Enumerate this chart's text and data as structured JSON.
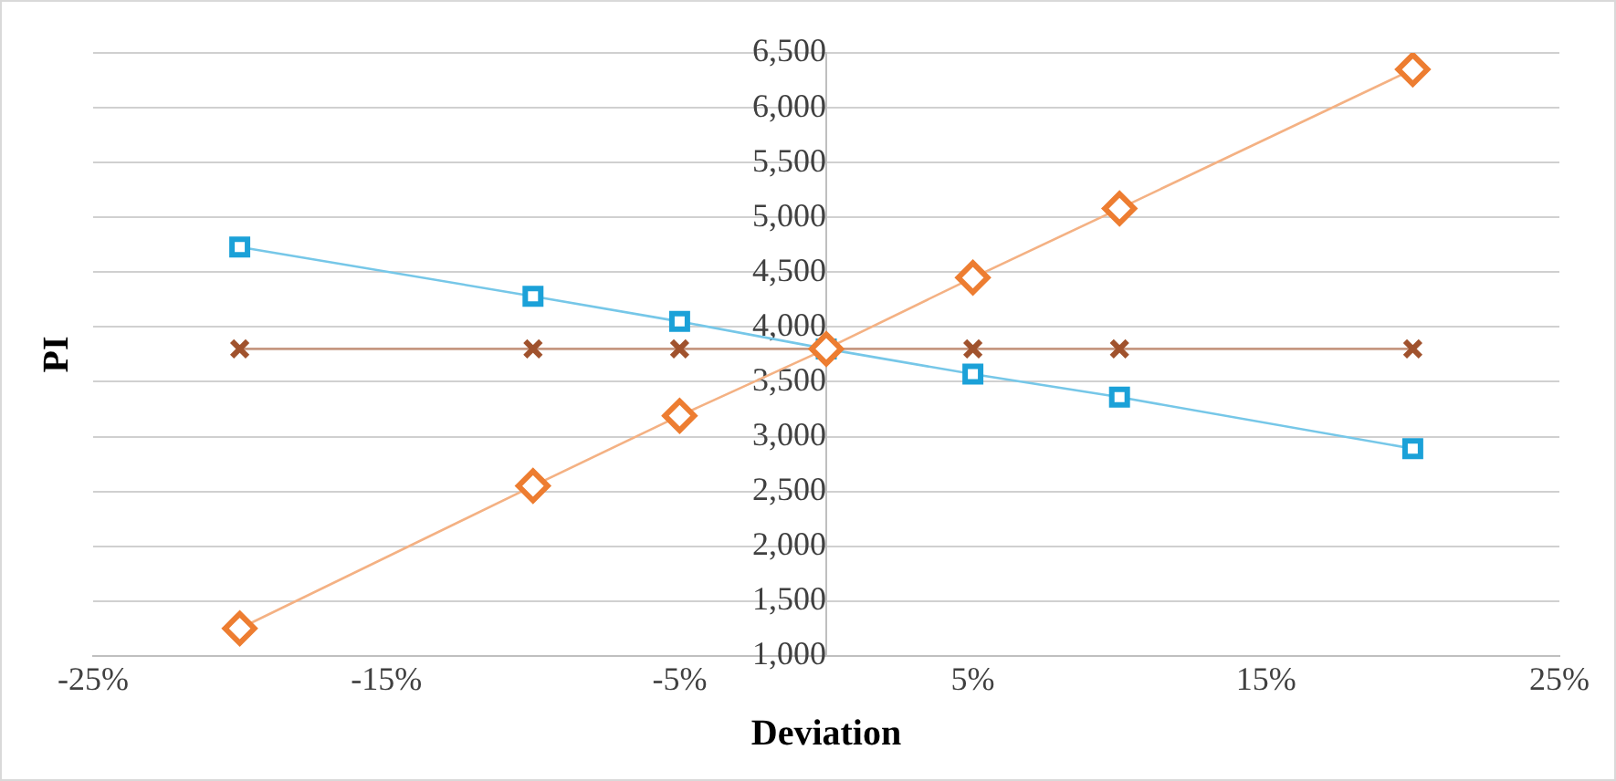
{
  "chart_data": {
    "type": "line",
    "xlabel": "Deviation",
    "ylabel": "PI",
    "xlim": [
      -25,
      25
    ],
    "xticks": [
      {
        "value": -25,
        "label": "-25%"
      },
      {
        "value": -15,
        "label": "-15%"
      },
      {
        "value": -5,
        "label": "-5%"
      },
      {
        "value": 5,
        "label": "5%"
      },
      {
        "value": 15,
        "label": "15%"
      },
      {
        "value": 25,
        "label": "25%"
      }
    ],
    "ylim": [
      1000,
      6500
    ],
    "yticks": [
      {
        "value": 1000,
        "label": "1,000"
      },
      {
        "value": 1500,
        "label": "1,500"
      },
      {
        "value": 2000,
        "label": "2,000"
      },
      {
        "value": 2500,
        "label": "2,500"
      },
      {
        "value": 3000,
        "label": "3,000"
      },
      {
        "value": 3500,
        "label": "3,500"
      },
      {
        "value": 4000,
        "label": "4,000"
      },
      {
        "value": 4500,
        "label": "4,500"
      },
      {
        "value": 5000,
        "label": "5,000"
      },
      {
        "value": 5500,
        "label": "5,500"
      },
      {
        "value": 6000,
        "label": "6,000"
      },
      {
        "value": 6500,
        "label": "6,500"
      }
    ],
    "grid": "y",
    "legend": false,
    "x": [
      -20,
      -10,
      -5,
      0,
      5,
      10,
      20
    ],
    "series": [
      {
        "color": "#ed7d31",
        "marker": "diamond",
        "values": [
          1250,
          2550,
          3190,
          3800,
          4450,
          5080,
          6350
        ]
      },
      {
        "color": "#1ba1d8",
        "marker": "square",
        "values": [
          4730,
          4280,
          4050,
          3800,
          3570,
          3360,
          2890
        ]
      },
      {
        "color": "#a0522d",
        "marker": "cross",
        "values": [
          3800,
          3800,
          3800,
          3800,
          3800,
          3800,
          3800
        ]
      }
    ]
  }
}
